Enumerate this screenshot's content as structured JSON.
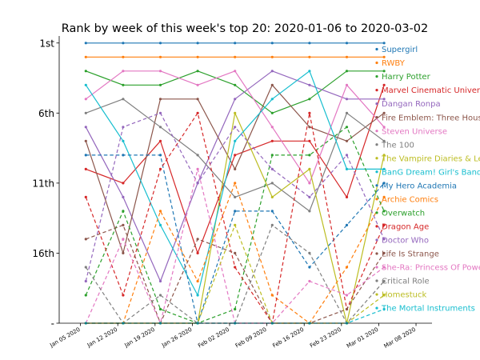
{
  "chart_data": {
    "type": "line",
    "title": "Rank by week of this week's top 20: 2020-01-06 to 2020-03-02",
    "x": [
      "2020-01-06",
      "2020-01-13",
      "2020-01-20",
      "2020-01-27",
      "2020-02-03",
      "2020-02-10",
      "2020-02-17",
      "2020-02-24",
      "2020-03-02"
    ],
    "x_tick_labels": [
      "Jan 05 2020",
      "Jan 12 2020",
      "Jan 19 2020",
      "Jan 26 2020",
      "Feb 02 2020",
      "Feb 09 2020",
      "Feb 16 2020",
      "Feb 23 2020",
      "Mar 01 2020",
      "Mar 08 2020"
    ],
    "x_tick_dates": [
      "2020-01-05",
      "2020-01-12",
      "2020-01-19",
      "2020-01-26",
      "2020-02-02",
      "2020-02-09",
      "2020-02-16",
      "2020-02-23",
      "2020-03-01",
      "2020-03-08"
    ],
    "xlim": [
      "2020-01-01",
      "2020-03-11"
    ],
    "y_tick_values": [
      1,
      6,
      11,
      16,
      21
    ],
    "y_tick_labels": [
      "1st",
      "6th",
      "11th",
      "16th",
      "-"
    ],
    "ylim": [
      21.0,
      0.5
    ],
    "y_inverted": true,
    "grid": false,
    "legend": "right",
    "xlabel": "",
    "ylabel": "",
    "series": [
      {
        "name": "Supergirl",
        "color": "#1f77b4",
        "style": "solid",
        "values": [
          1,
          1,
          1,
          1,
          1,
          1,
          1,
          1,
          1
        ]
      },
      {
        "name": "RWBY",
        "color": "#ff7f0e",
        "style": "solid",
        "values": [
          2,
          2,
          2,
          2,
          2,
          2,
          2,
          2,
          2
        ]
      },
      {
        "name": "Harry Potter",
        "color": "#2ca02c",
        "style": "solid",
        "values": [
          3,
          4,
          4,
          3,
          4,
          6,
          5,
          3,
          3
        ]
      },
      {
        "name": "Marvel Cinematic Universe",
        "color": "#d62728",
        "style": "solid",
        "values": [
          10,
          11,
          8,
          16,
          9,
          8,
          8,
          12,
          4
        ]
      },
      {
        "name": "Dangan Ronpa",
        "color": "#9467bd",
        "style": "solid",
        "values": [
          7,
          12,
          18,
          11,
          5,
          3,
          4,
          5,
          5
        ]
      },
      {
        "name": "Fire Emblem: Three Houses",
        "color": "#8c564b",
        "style": "solid",
        "values": [
          8,
          16,
          5,
          5,
          10,
          4,
          7,
          8,
          6
        ]
      },
      {
        "name": "Steven Universe",
        "color": "#e377c2",
        "style": "solid",
        "values": [
          5,
          3,
          3,
          4,
          3,
          7,
          11,
          4,
          7
        ]
      },
      {
        "name": "The 100",
        "color": "#7f7f7f",
        "style": "solid",
        "values": [
          6,
          5,
          7,
          9,
          12,
          11,
          13,
          6,
          8
        ]
      },
      {
        "name": "The Vampire Diaries & Legacies",
        "color": "#bcbd22",
        "style": "solid",
        "values": [
          21,
          21,
          21,
          21,
          6,
          12,
          10,
          21,
          9
        ]
      },
      {
        "name": "BanG Dream! Girl's Band Party!",
        "color": "#17becf",
        "style": "solid",
        "values": [
          4,
          8,
          14,
          19,
          8,
          5,
          3,
          10,
          10
        ]
      },
      {
        "name": "My Hero Academia",
        "color": "#1f77b4",
        "style": "dashed",
        "values": [
          9,
          9,
          9,
          21,
          13,
          13,
          17,
          14,
          11
        ]
      },
      {
        "name": "Archie Comics",
        "color": "#ff7f0e",
        "style": "dashed",
        "values": [
          21,
          21,
          13,
          18,
          11,
          19,
          21,
          17,
          12
        ]
      },
      {
        "name": "Overwatch",
        "color": "#2ca02c",
        "style": "dashed",
        "values": [
          19,
          13,
          20,
          21,
          20,
          9,
          9,
          7,
          13
        ]
      },
      {
        "name": "Dragon Age",
        "color": "#d62728",
        "style": "dashed",
        "values": [
          12,
          19,
          10,
          6,
          17,
          21,
          6,
          20,
          14
        ]
      },
      {
        "name": "Doctor Who",
        "color": "#9467bd",
        "style": "dashed",
        "values": [
          18,
          7,
          6,
          11,
          7,
          10,
          12,
          9,
          15
        ]
      },
      {
        "name": "Life Is Strange",
        "color": "#8c564b",
        "style": "dashed",
        "values": [
          15,
          14,
          21,
          15,
          16,
          21,
          21,
          20,
          16
        ]
      },
      {
        "name": "She-Ra: Princess Of Power",
        "color": "#e377c2",
        "style": "dashed",
        "values": [
          21,
          15,
          21,
          10,
          21,
          21,
          18,
          19,
          17
        ]
      },
      {
        "name": "Critical Role",
        "color": "#7f7f7f",
        "style": "dashed",
        "values": [
          17,
          21,
          19,
          21,
          21,
          14,
          16,
          21,
          18
        ]
      },
      {
        "name": "Homestuck",
        "color": "#bcbd22",
        "style": "dashed",
        "values": [
          21,
          21,
          21,
          21,
          14,
          21,
          21,
          21,
          19
        ]
      },
      {
        "name": "The Mortal Instruments",
        "color": "#17becf",
        "style": "dashed",
        "values": [
          21,
          21,
          21,
          21,
          21,
          21,
          21,
          21,
          20
        ]
      }
    ]
  }
}
